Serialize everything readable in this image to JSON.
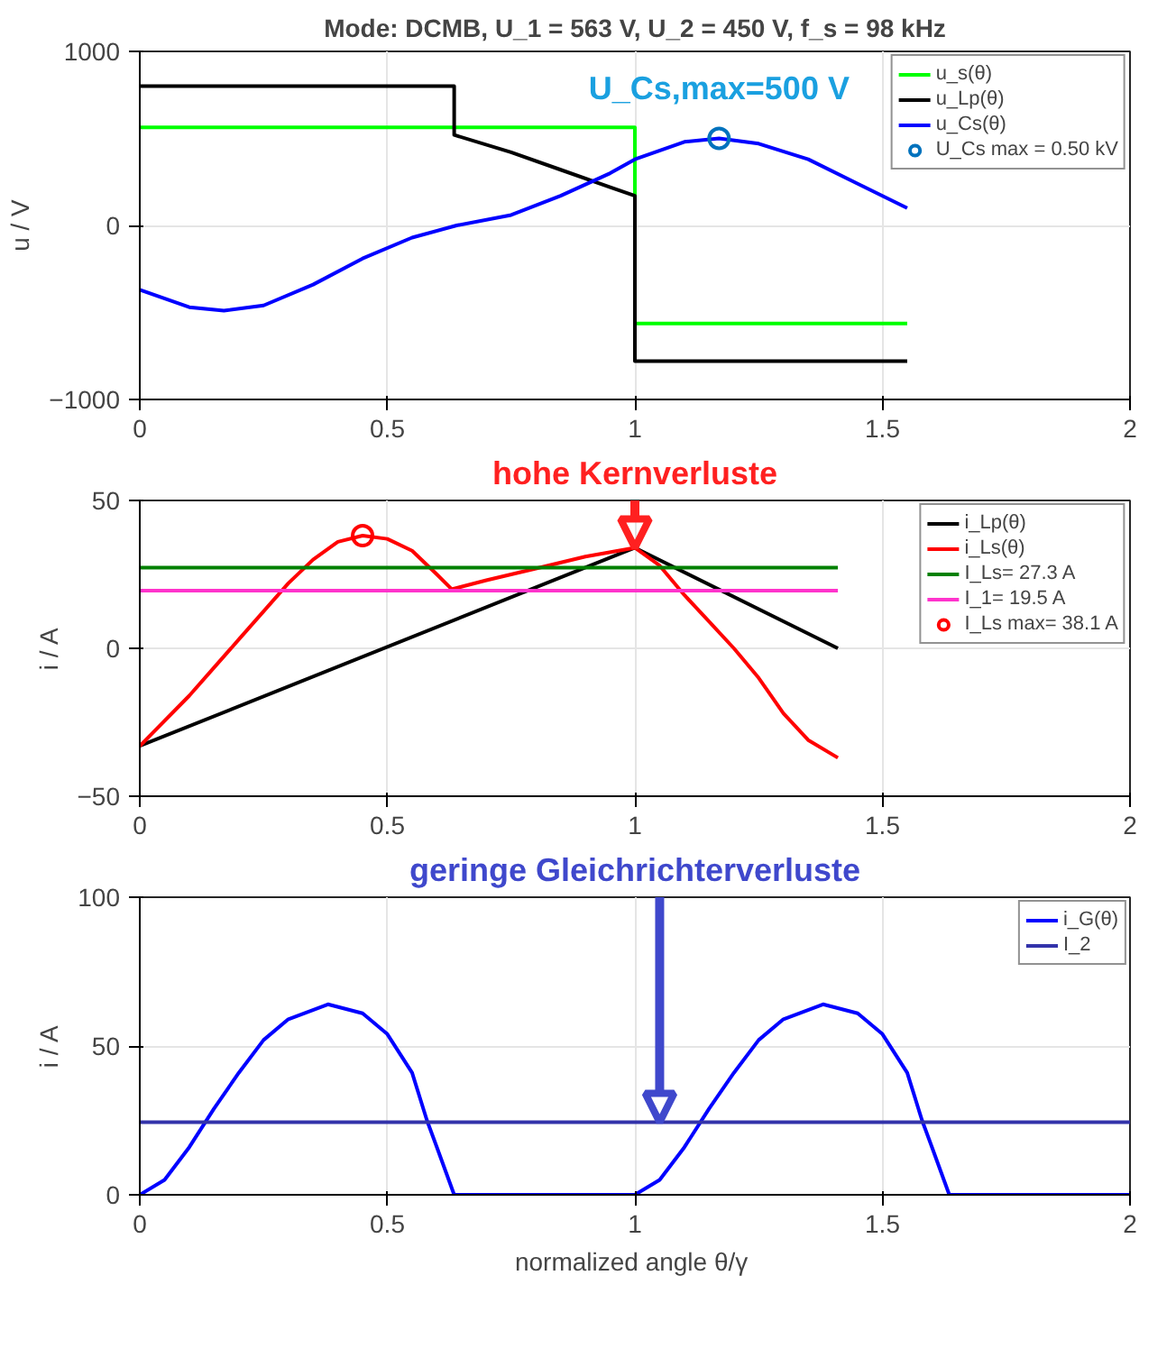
{
  "chart_data": [
    {
      "type": "line",
      "title": "Mode: DCMB, U_1 = 563 V, U_2 = 450 V, f_s = 98 kHz",
      "ylabel": "u / V",
      "xlim": [
        0,
        2
      ],
      "xticks": [
        0,
        0.5,
        1,
        1.5,
        2
      ],
      "ylim": [
        -1000,
        1000
      ],
      "yticks": [
        -1000,
        0,
        1000
      ],
      "grid": true,
      "legend": "top right",
      "line_style": "solid",
      "annotations": [
        {
          "text": "U_Cs,max=500 V",
          "x": 1.17,
          "y": 500
        }
      ],
      "series": [
        {
          "name": "u_s(θ)",
          "color": "#00ff00",
          "x": [
            0,
            1,
            1,
            1.55
          ],
          "values": [
            563,
            563,
            -563,
            -563
          ]
        },
        {
          "name": "u_Lp(θ)",
          "color": "#000000",
          "x": [
            0,
            0.635,
            0.635,
            0.75,
            0.85,
            0.95,
            1,
            1,
            1.55
          ],
          "values": [
            800,
            800,
            520,
            420,
            320,
            220,
            170,
            -780,
            -780
          ]
        },
        {
          "name": "u_Cs(θ)",
          "color": "#0000ff",
          "x": [
            0,
            0.1,
            0.17,
            0.25,
            0.35,
            0.45,
            0.55,
            0.64,
            0.75,
            0.85,
            0.95,
            1,
            1.1,
            1.17,
            1.25,
            1.35,
            1.45,
            1.55
          ],
          "values": [
            -370,
            -470,
            -490,
            -460,
            -340,
            -190,
            -70,
            0,
            60,
            170,
            300,
            380,
            480,
            500,
            470,
            380,
            240,
            100
          ]
        },
        {
          "name": "U_Cs max = 0.50 kV",
          "type": "scatter",
          "marker": "circle",
          "color": "#0072bd",
          "x": [
            1.17
          ],
          "values": [
            500
          ]
        }
      ]
    },
    {
      "type": "line",
      "ylabel": "i / A",
      "xlim": [
        0,
        2
      ],
      "xticks": [
        0,
        0.5,
        1,
        1.5,
        2
      ],
      "ylim": [
        -50,
        50
      ],
      "yticks": [
        -50,
        0,
        50
      ],
      "grid": true,
      "legend": "top right",
      "line_style": "solid",
      "annotations": [
        {
          "text": "hohe Kernverluste",
          "x": 1,
          "y": 34
        }
      ],
      "series": [
        {
          "name": "i_Lp(θ)",
          "color": "#000000",
          "x": [
            0,
            1,
            1.41
          ],
          "values": [
            -33,
            34,
            0
          ]
        },
        {
          "name": "i_Ls(θ)",
          "color": "#ff0000",
          "x": [
            0,
            0.1,
            0.2,
            0.3,
            0.35,
            0.4,
            0.45,
            0.5,
            0.55,
            0.6,
            0.63,
            0.7,
            0.8,
            0.9,
            1,
            1.05,
            1.1,
            1.15,
            1.2,
            1.25,
            1.3,
            1.35,
            1.41
          ],
          "values": [
            -33,
            -16,
            3,
            22,
            30,
            36,
            38.1,
            37,
            33,
            25,
            20,
            23,
            27,
            31,
            34,
            28,
            18,
            9,
            0,
            -10,
            -22,
            -31,
            -37
          ]
        },
        {
          "name": "I_Ls= 27.3 A",
          "color": "#008000",
          "x": [
            0,
            1.41
          ],
          "values": [
            27.3,
            27.3
          ]
        },
        {
          "name": "I_1= 19.5 A",
          "color": "#ff33cc",
          "x": [
            0,
            1.41
          ],
          "values": [
            19.5,
            19.5
          ]
        },
        {
          "name": "I_Ls max= 38.1 A",
          "type": "scatter",
          "marker": "circle",
          "color": "#ff0000",
          "x": [
            0.45
          ],
          "values": [
            38.1
          ]
        }
      ]
    },
    {
      "type": "line",
      "ylabel": "i / A",
      "xlabel": "normalized angle  θ/γ",
      "xlim": [
        0,
        2
      ],
      "xticks": [
        0,
        0.5,
        1,
        1.5,
        2
      ],
      "ylim": [
        0,
        100
      ],
      "yticks": [
        0,
        50,
        100
      ],
      "grid": true,
      "legend": "top right",
      "line_style": "solid",
      "annotations": [
        {
          "text": "geringe Gleichrichterverluste",
          "x": 1.05,
          "y": 24.4
        }
      ],
      "series": [
        {
          "name": "i_G(θ)",
          "color": "#0000ff",
          "x": [
            0,
            0.05,
            0.1,
            0.15,
            0.2,
            0.25,
            0.3,
            0.38,
            0.45,
            0.5,
            0.55,
            0.58,
            0.6,
            0.635,
            1,
            1.05,
            1.1,
            1.15,
            1.2,
            1.25,
            1.3,
            1.38,
            1.45,
            1.5,
            1.55,
            1.58,
            1.6,
            1.635,
            2
          ],
          "values": [
            0,
            5,
            16,
            29,
            41,
            52,
            59,
            64,
            61,
            54,
            41,
            25,
            16,
            0,
            0,
            5,
            16,
            29,
            41,
            52,
            59,
            64,
            61,
            54,
            41,
            25,
            16,
            0,
            0
          ]
        },
        {
          "name": "I_2",
          "color": "#3333aa",
          "x": [
            0,
            2
          ],
          "values": [
            24.4,
            24.4
          ]
        }
      ]
    }
  ]
}
